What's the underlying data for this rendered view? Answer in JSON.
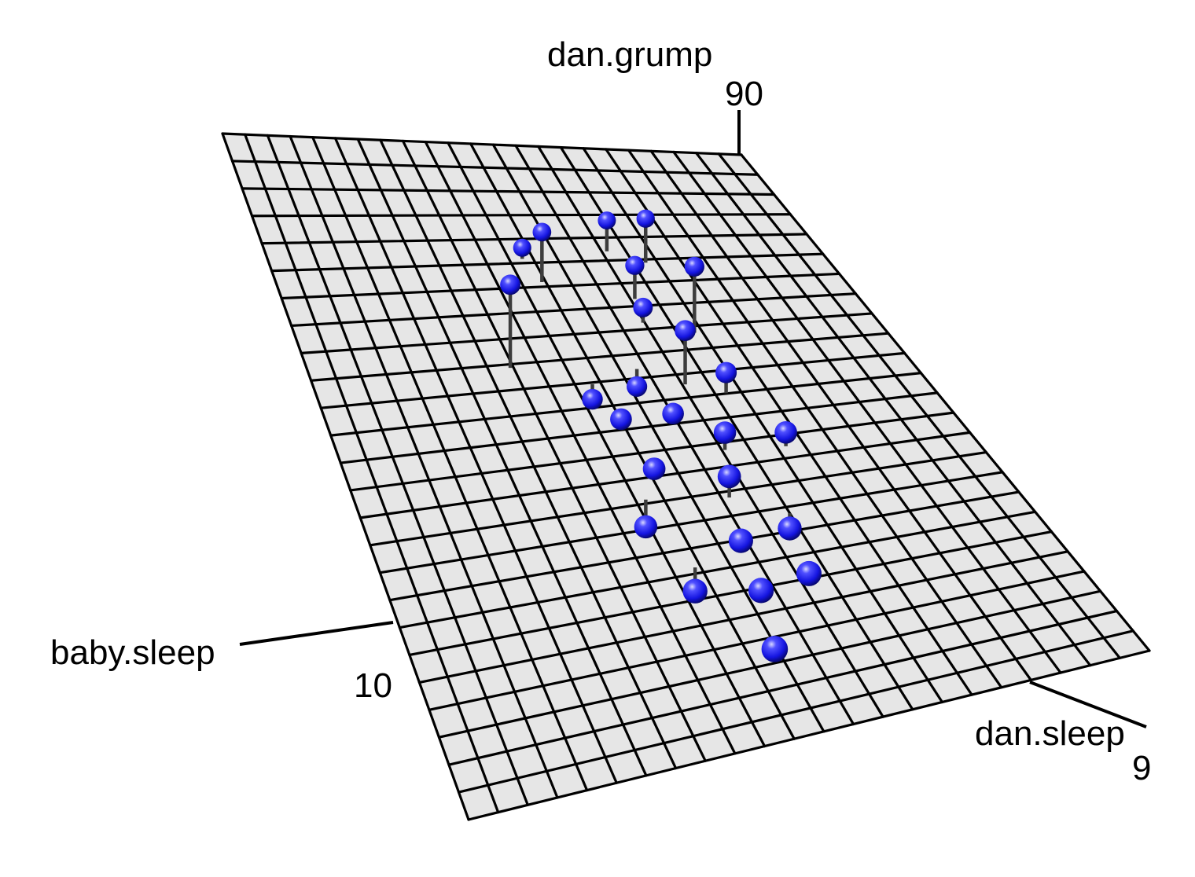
{
  "chart_data": {
    "type": "scatter",
    "title": "",
    "axes": {
      "x": {
        "label": "baby.sleep",
        "tick_labels": [
          "10"
        ]
      },
      "y": {
        "label": "dan.sleep",
        "tick_labels": [
          "9"
        ]
      },
      "z": {
        "label": "dan.grump",
        "tick_labels": [
          "90"
        ]
      }
    },
    "surface": {
      "kind": "regression plane",
      "grid": true,
      "fill_color": "#e6e6e6",
      "line_color": "#000000"
    },
    "points_color": "#1a1aff",
    "stem_color": "#3c3c3c",
    "points": [
      {
        "baby_sleep": 9.5,
        "dan_sleep": 5.2,
        "dan_grump": 89
      },
      {
        "baby_sleep": 5.8,
        "dan_sleep": 4.7,
        "dan_grump": 84
      },
      {
        "baby_sleep": 3.1,
        "dan_sleep": 5.4,
        "dan_grump": 80
      },
      {
        "baby_sleep": 2.4,
        "dan_sleep": 5.8,
        "dan_grump": 78
      },
      {
        "baby_sleep": 4.0,
        "dan_sleep": 5.9,
        "dan_grump": 76
      },
      {
        "baby_sleep": 4.6,
        "dan_sleep": 6.1,
        "dan_grump": 72
      },
      {
        "baby_sleep": 5.6,
        "dan_sleep": 6.8,
        "dan_grump": 71
      },
      {
        "baby_sleep": 7.9,
        "dan_sleep": 6.0,
        "dan_grump": 69
      },
      {
        "baby_sleep": 8.6,
        "dan_sleep": 6.5,
        "dan_grump": 68
      },
      {
        "baby_sleep": 6.3,
        "dan_sleep": 6.3,
        "dan_grump": 66
      },
      {
        "baby_sleep": 7.1,
        "dan_sleep": 6.9,
        "dan_grump": 64
      },
      {
        "baby_sleep": 4.9,
        "dan_sleep": 7.2,
        "dan_grump": 63
      },
      {
        "baby_sleep": 9.0,
        "dan_sleep": 7.0,
        "dan_grump": 62
      },
      {
        "baby_sleep": 6.8,
        "dan_sleep": 7.5,
        "dan_grump": 60
      },
      {
        "baby_sleep": 8.2,
        "dan_sleep": 7.8,
        "dan_grump": 58
      },
      {
        "baby_sleep": 10.1,
        "dan_sleep": 7.1,
        "dan_grump": 57
      },
      {
        "baby_sleep": 5.3,
        "dan_sleep": 8.0,
        "dan_grump": 55
      },
      {
        "baby_sleep": 9.6,
        "dan_sleep": 8.2,
        "dan_grump": 53
      },
      {
        "baby_sleep": 11.0,
        "dan_sleep": 7.9,
        "dan_grump": 50
      },
      {
        "baby_sleep": 10.4,
        "dan_sleep": 8.6,
        "dan_grump": 48
      },
      {
        "baby_sleep": 7.4,
        "dan_sleep": 8.4,
        "dan_grump": 47
      },
      {
        "baby_sleep": 8.9,
        "dan_sleep": 8.9,
        "dan_grump": 45
      },
      {
        "baby_sleep": 11.6,
        "dan_sleep": 9.0,
        "dan_grump": 43
      },
      {
        "baby_sleep": 6.0,
        "dan_sleep": 5.0,
        "dan_grump": 86
      },
      {
        "baby_sleep": 3.6,
        "dan_sleep": 6.6,
        "dan_grump": 74
      }
    ]
  }
}
